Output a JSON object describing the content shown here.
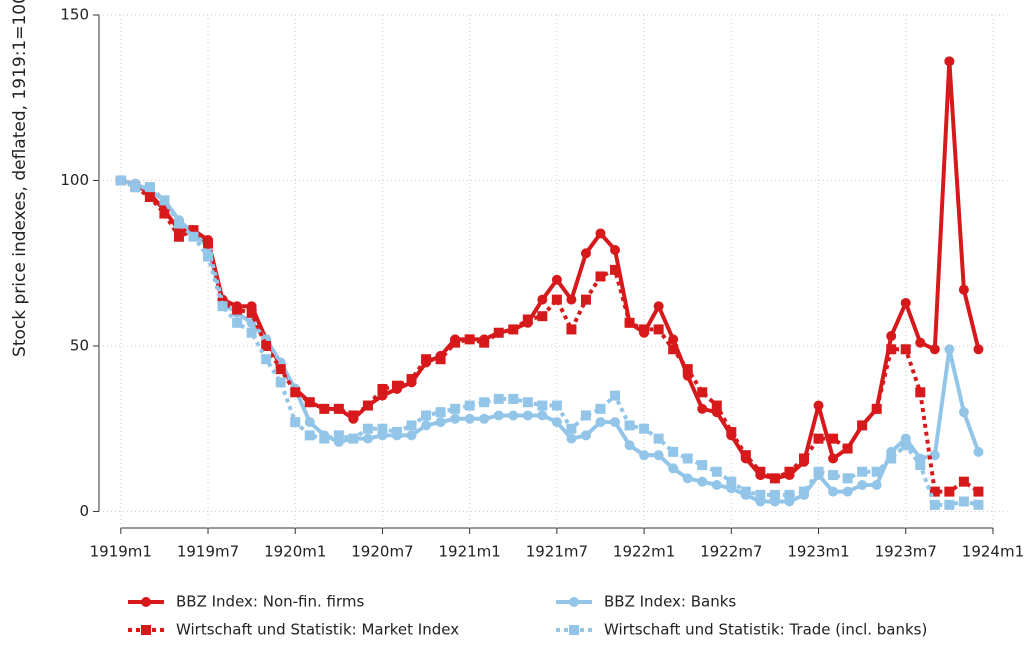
{
  "chart_data": {
    "type": "line",
    "y_label": "Stock price indexes, deflated, 1919:1=100",
    "x": [
      0,
      1,
      2,
      3,
      4,
      5,
      6,
      7,
      8,
      9,
      10,
      11,
      12,
      13,
      14,
      15,
      16,
      17,
      18,
      19,
      20,
      21,
      22,
      23,
      24,
      25,
      26,
      27,
      28,
      29,
      30,
      31,
      32,
      33,
      34,
      35,
      36,
      37,
      38,
      39,
      40,
      41,
      42,
      43,
      44,
      45,
      46,
      47,
      48,
      49,
      50,
      51,
      52,
      53,
      54,
      55,
      56,
      57,
      58,
      59
    ],
    "xlim": [
      -1.5,
      61
    ],
    "xticks": [
      {
        "value": 0,
        "label": "1919m1"
      },
      {
        "value": 6,
        "label": "1919m7"
      },
      {
        "value": 12,
        "label": "1920m1"
      },
      {
        "value": 18,
        "label": "1920m7"
      },
      {
        "value": 24,
        "label": "1921m1"
      },
      {
        "value": 30,
        "label": "1921m7"
      },
      {
        "value": 36,
        "label": "1922m1"
      },
      {
        "value": 42,
        "label": "1922m7"
      },
      {
        "value": 48,
        "label": "1923m1"
      },
      {
        "value": 54,
        "label": "1923m7"
      },
      {
        "value": 60,
        "label": "1924m1"
      }
    ],
    "ylim": [
      -5,
      150
    ],
    "yticks": [
      0,
      50,
      100,
      150
    ],
    "grid": true,
    "series": [
      {
        "name": "BBZ Index: Non-fin. firms",
        "color": "#d7191c",
        "dash": false,
        "marker": "circle",
        "values": [
          100,
          99,
          96,
          91,
          85,
          85,
          82,
          64,
          62,
          62,
          52,
          44,
          37,
          33,
          31,
          31,
          28,
          32,
          35,
          37,
          39,
          45,
          47,
          52,
          52,
          52,
          54,
          55,
          57,
          64,
          70,
          64,
          78,
          84,
          79,
          57,
          54,
          62,
          52,
          41,
          31,
          30,
          23,
          16,
          11,
          10,
          11,
          15,
          32,
          16,
          19,
          26,
          31,
          53,
          63,
          51,
          49,
          136,
          67,
          49
        ]
      },
      {
        "name": "BBZ Index: Banks",
        "color": "#92c5e8",
        "dash": false,
        "marker": "circle",
        "values": [
          100,
          99,
          97,
          94,
          88,
          84,
          80,
          63,
          60,
          57,
          52,
          45,
          37,
          27,
          23,
          21,
          22,
          22,
          23,
          23,
          23,
          26,
          27,
          28,
          28,
          28,
          29,
          29,
          29,
          29,
          27,
          22,
          23,
          27,
          27,
          20,
          17,
          17,
          13,
          10,
          9,
          8,
          7,
          5,
          3,
          3,
          3,
          5,
          11,
          6,
          6,
          8,
          8,
          18,
          22,
          16,
          17,
          49,
          30,
          18
        ]
      },
      {
        "name": "Wirtschaft und Statistik: Market Index",
        "color": "#d7191c",
        "dash": true,
        "marker": "square",
        "values": [
          100,
          98,
          95,
          90,
          83,
          85,
          81,
          63,
          61,
          60,
          50,
          43,
          36,
          33,
          31,
          31,
          29,
          32,
          37,
          38,
          40,
          46,
          46,
          51,
          52,
          51,
          54,
          55,
          58,
          59,
          64,
          55,
          64,
          71,
          73,
          57,
          55,
          55,
          49,
          43,
          36,
          32,
          24,
          17,
          12,
          10,
          12,
          16,
          22,
          22,
          19,
          26,
          31,
          49,
          49,
          36,
          6,
          6,
          9,
          6
        ]
      },
      {
        "name": "Wirtschaft und Statistik: Trade (incl. banks)",
        "color": "#92c5e8",
        "dash": true,
        "marker": "square",
        "values": [
          100,
          98,
          98,
          94,
          87,
          83,
          77,
          62,
          57,
          54,
          46,
          39,
          27,
          23,
          22,
          23,
          22,
          25,
          25,
          24,
          26,
          29,
          30,
          31,
          32,
          33,
          34,
          34,
          33,
          32,
          32,
          25,
          29,
          31,
          35,
          26,
          25,
          22,
          18,
          16,
          14,
          12,
          9,
          6,
          5,
          5,
          5,
          6,
          12,
          11,
          10,
          12,
          12,
          16,
          20,
          14,
          2,
          2,
          3,
          2
        ]
      }
    ]
  }
}
